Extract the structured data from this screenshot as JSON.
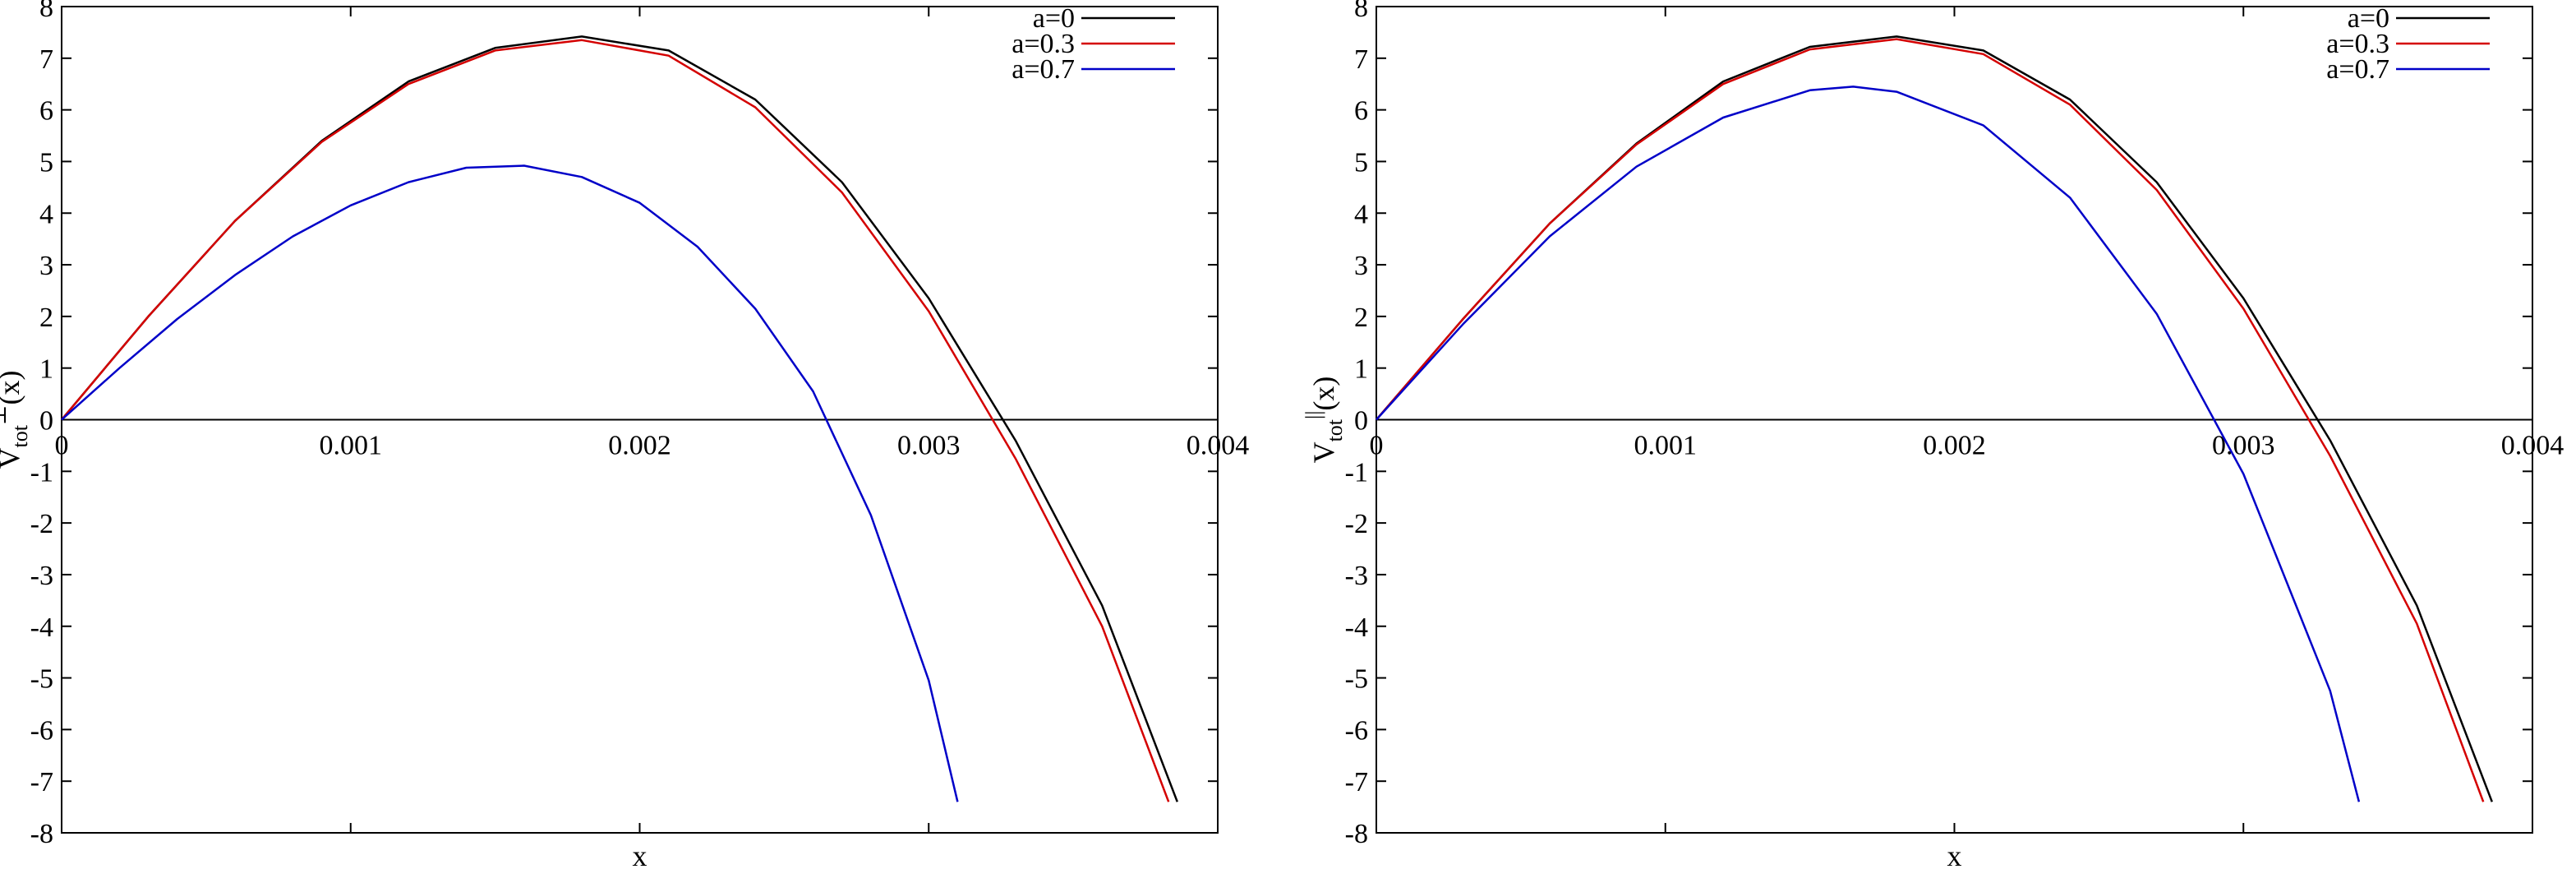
{
  "chart_data": [
    {
      "type": "line",
      "xlabel": "x",
      "ylabel": {
        "base": "V",
        "sub": "tot",
        "sup": "⊥",
        "tail": "(x)"
      },
      "xlim": [
        0,
        0.004
      ],
      "ylim": [
        -8,
        8
      ],
      "x_ticks": [
        0,
        0.001,
        0.002,
        0.003,
        0.004
      ],
      "x_tick_labels": [
        "0",
        "0.001",
        "0.002",
        "0.003",
        "0.004"
      ],
      "y_ticks": [
        -8,
        -7,
        -6,
        -5,
        -4,
        -3,
        -2,
        -1,
        0,
        1,
        2,
        3,
        4,
        5,
        6,
        7,
        8
      ],
      "legend_position": "top-right",
      "grid": false,
      "series": [
        {
          "name": "a=0",
          "color": "#000000",
          "x": [
            0,
            0.0003,
            0.0006,
            0.0009,
            0.0012,
            0.0015,
            0.0018,
            0.0021,
            0.0024,
            0.0027,
            0.003,
            0.0033,
            0.0036,
            0.00386
          ],
          "y": [
            0,
            2.0,
            3.85,
            5.4,
            6.55,
            7.2,
            7.42,
            7.15,
            6.2,
            4.6,
            2.35,
            -0.4,
            -3.6,
            -7.4
          ]
        },
        {
          "name": "a=0.3",
          "color": "#d40000",
          "x": [
            0,
            0.0003,
            0.0006,
            0.0009,
            0.0012,
            0.0015,
            0.0018,
            0.0021,
            0.0024,
            0.0027,
            0.003,
            0.0033,
            0.0036,
            0.00383
          ],
          "y": [
            0,
            2.0,
            3.85,
            5.38,
            6.5,
            7.15,
            7.35,
            7.05,
            6.05,
            4.4,
            2.1,
            -0.75,
            -4.0,
            -7.4
          ]
        },
        {
          "name": "a=0.7",
          "color": "#0000c8",
          "x": [
            0,
            0.0002,
            0.0004,
            0.0006,
            0.0008,
            0.001,
            0.0012,
            0.0014,
            0.0016,
            0.0018,
            0.002,
            0.0022,
            0.0024,
            0.0026,
            0.0028,
            0.003,
            0.0031
          ],
          "y": [
            0,
            1.0,
            1.95,
            2.8,
            3.55,
            4.15,
            4.6,
            4.88,
            4.92,
            4.7,
            4.2,
            3.35,
            2.15,
            0.55,
            -1.85,
            -5.05,
            -7.4
          ]
        }
      ]
    },
    {
      "type": "line",
      "xlabel": "x",
      "ylabel": {
        "base": "V",
        "sub": "tot",
        "sup": "||",
        "tail": "(x)"
      },
      "xlim": [
        0,
        0.004
      ],
      "ylim": [
        -8,
        8
      ],
      "x_ticks": [
        0,
        0.001,
        0.002,
        0.003,
        0.004
      ],
      "x_tick_labels": [
        "0",
        "0.001",
        "0.002",
        "0.003",
        "0.004"
      ],
      "y_ticks": [
        -8,
        -7,
        -6,
        -5,
        -4,
        -3,
        -2,
        -1,
        0,
        1,
        2,
        3,
        4,
        5,
        6,
        7,
        8
      ],
      "legend_position": "top-right",
      "grid": false,
      "series": [
        {
          "name": "a=0",
          "color": "#000000",
          "x": [
            0,
            0.0003,
            0.0006,
            0.0009,
            0.0012,
            0.0015,
            0.0018,
            0.0021,
            0.0024,
            0.0027,
            0.003,
            0.0033,
            0.0036,
            0.00386
          ],
          "y": [
            0,
            1.95,
            3.8,
            5.35,
            6.55,
            7.22,
            7.42,
            7.15,
            6.2,
            4.6,
            2.35,
            -0.4,
            -3.6,
            -7.4
          ]
        },
        {
          "name": "a=0.3",
          "color": "#d40000",
          "x": [
            0,
            0.0003,
            0.0006,
            0.0009,
            0.0012,
            0.0015,
            0.0018,
            0.0021,
            0.0024,
            0.0027,
            0.003,
            0.0033,
            0.0036,
            0.00383
          ],
          "y": [
            0,
            1.95,
            3.8,
            5.33,
            6.5,
            7.17,
            7.37,
            7.08,
            6.1,
            4.45,
            2.15,
            -0.7,
            -3.95,
            -7.4
          ]
        },
        {
          "name": "a=0.7",
          "color": "#0000c8",
          "x": [
            0,
            0.0003,
            0.0006,
            0.0009,
            0.0012,
            0.0015,
            0.00165,
            0.0018,
            0.0021,
            0.0024,
            0.0027,
            0.003,
            0.0033,
            0.0034
          ],
          "y": [
            0,
            1.85,
            3.55,
            4.9,
            5.85,
            6.38,
            6.45,
            6.35,
            5.7,
            4.3,
            2.05,
            -1.05,
            -5.25,
            -7.4
          ]
        }
      ]
    }
  ]
}
